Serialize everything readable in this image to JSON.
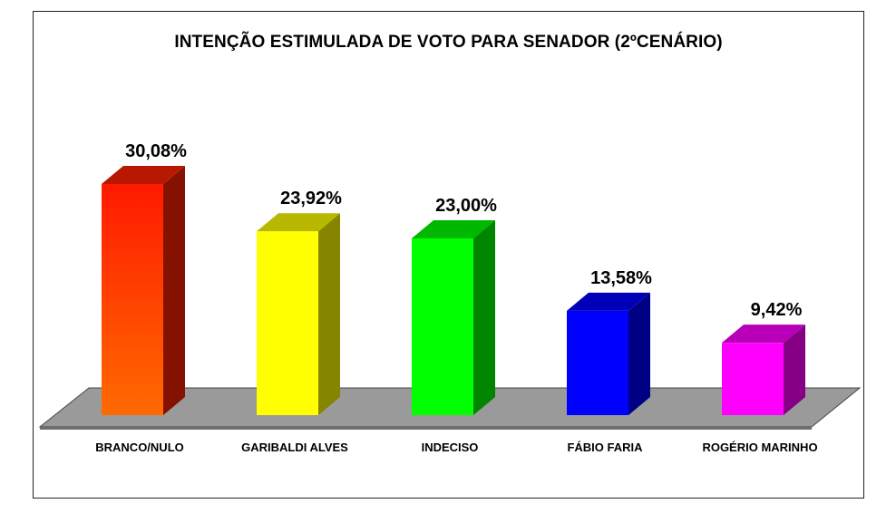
{
  "chart_data": {
    "type": "bar",
    "title": "INTENÇÃO ESTIMULADA DE VOTO PARA SENADOR (2ºCENÁRIO)",
    "categories": [
      "BRANCO/NULO",
      "GARIBALDI ALVES",
      "INDECISO",
      "FÁBIO FARIA",
      "ROGÉRIO MARINHO"
    ],
    "values": [
      30.08,
      23.92,
      23.0,
      13.58,
      9.42
    ],
    "data_labels": [
      "30,08%",
      "23,92%",
      "23,00%",
      "13,58%",
      "9,42%"
    ],
    "colors": [
      "#ff2200",
      "#ffff00",
      "#00ff00",
      "#0000ff",
      "#ff00ff"
    ],
    "ylim": [
      0,
      30.08
    ],
    "xlabel": "",
    "ylabel": "",
    "grid": false,
    "legend": "none",
    "style": "3d-bars"
  }
}
